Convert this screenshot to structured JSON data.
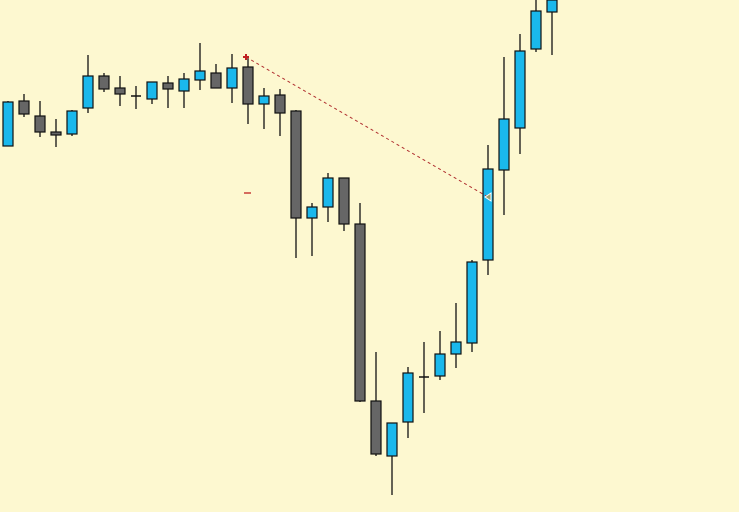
{
  "chart_data": {
    "type": "candlestick",
    "title": "",
    "xlabel": "",
    "ylabel": "",
    "grid": false,
    "axes_visible": false,
    "ylim": [
      1.1,
      1.1512
    ],
    "colors": {
      "background": "#fdf8d0",
      "bull": "#1ab8ec",
      "bear": "#666666",
      "outline": "#111111",
      "trendline": "#b03030",
      "marker": "#c02020"
    },
    "candles": [
      {
        "o": 1.1366,
        "h": 1.1411,
        "l": 1.1366,
        "c": 1.141
      },
      {
        "o": 1.1411,
        "h": 1.1418,
        "l": 1.1395,
        "c": 1.1398
      },
      {
        "o": 1.1396,
        "h": 1.1411,
        "l": 1.1375,
        "c": 1.138
      },
      {
        "o": 1.138,
        "h": 1.1393,
        "l": 1.1365,
        "c": 1.1377
      },
      {
        "o": 1.1378,
        "h": 1.1402,
        "l": 1.1376,
        "c": 1.1401
      },
      {
        "o": 1.1404,
        "h": 1.1457,
        "l": 1.1399,
        "c": 1.1436
      },
      {
        "o": 1.1436,
        "h": 1.1439,
        "l": 1.142,
        "c": 1.1423
      },
      {
        "o": 1.1424,
        "h": 1.1436,
        "l": 1.1406,
        "c": 1.1418
      },
      {
        "o": 1.1416,
        "h": 1.1426,
        "l": 1.1403,
        "c": 1.1416
      },
      {
        "o": 1.1413,
        "h": 1.143,
        "l": 1.1408,
        "c": 1.143
      },
      {
        "o": 1.1429,
        "h": 1.1436,
        "l": 1.1404,
        "c": 1.1423
      },
      {
        "o": 1.1421,
        "h": 1.1439,
        "l": 1.1404,
        "c": 1.1433
      },
      {
        "o": 1.1432,
        "h": 1.1469,
        "l": 1.1422,
        "c": 1.1441
      },
      {
        "o": 1.1439,
        "h": 1.1448,
        "l": 1.1424,
        "c": 1.1424
      },
      {
        "o": 1.1424,
        "h": 1.1458,
        "l": 1.1409,
        "c": 1.1444
      },
      {
        "o": 1.1445,
        "h": 1.1454,
        "l": 1.1388,
        "c": 1.1408
      },
      {
        "o": 1.1408,
        "h": 1.1424,
        "l": 1.1383,
        "c": 1.1416
      },
      {
        "o": 1.1417,
        "h": 1.1423,
        "l": 1.1376,
        "c": 1.1399
      },
      {
        "o": 1.1401,
        "h": 1.1402,
        "l": 1.1254,
        "c": 1.1294
      },
      {
        "o": 1.1294,
        "h": 1.1309,
        "l": 1.1256,
        "c": 1.1305
      },
      {
        "o": 1.1305,
        "h": 1.1339,
        "l": 1.129,
        "c": 1.1334
      },
      {
        "o": 1.1334,
        "h": 1.1334,
        "l": 1.1281,
        "c": 1.1288
      },
      {
        "o": 1.1288,
        "h": 1.1309,
        "l": 1.111,
        "c": 1.1111
      },
      {
        "o": 1.1111,
        "h": 1.116,
        "l": 1.1056,
        "c": 1.1058
      },
      {
        "o": 1.1056,
        "h": 1.1089,
        "l": 1.1017,
        "c": 1.1089
      },
      {
        "o": 1.109,
        "h": 1.1145,
        "l": 1.1074,
        "c": 1.1139
      },
      {
        "o": 1.1135,
        "h": 1.117,
        "l": 1.1099,
        "c": 1.1135
      },
      {
        "o": 1.1136,
        "h": 1.1181,
        "l": 1.1132,
        "c": 1.1158
      },
      {
        "o": 1.1158,
        "h": 1.1209,
        "l": 1.1144,
        "c": 1.117
      },
      {
        "o": 1.1169,
        "h": 1.1252,
        "l": 1.116,
        "c": 1.125
      },
      {
        "o": 1.1252,
        "h": 1.1367,
        "l": 1.1237,
        "c": 1.1343
      },
      {
        "o": 1.1342,
        "h": 1.1455,
        "l": 1.1297,
        "c": 1.1393
      },
      {
        "o": 1.1384,
        "h": 1.1478,
        "l": 1.1358,
        "c": 1.1461
      },
      {
        "o": 1.1463,
        "h": 1.1512,
        "l": 1.146,
        "c": 1.1501
      },
      {
        "o": 1.15,
        "h": 1.1522,
        "l": 1.1457,
        "c": 1.1512
      }
    ],
    "trendline": {
      "from": {
        "index": 15,
        "price": 1.1455
      },
      "to": {
        "index": 30,
        "price": 1.1315
      },
      "style": "dashed"
    },
    "markers": [
      {
        "type": "arrow-start",
        "index": 15,
        "price": 1.1455
      },
      {
        "type": "dash",
        "index": 15,
        "price": 1.1319
      },
      {
        "type": "triangle-left",
        "index": 30,
        "price": 1.1315
      }
    ]
  }
}
